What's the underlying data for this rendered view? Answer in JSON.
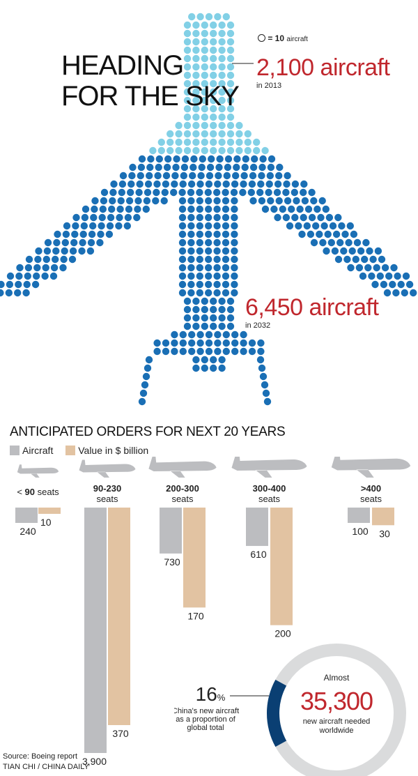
{
  "headline": [
    "HEADING",
    "FOR THE SKY"
  ],
  "legend_note": {
    "symbol": "circle",
    "value": "= 10",
    "unit": "aircraft"
  },
  "fleet_2013": {
    "value": "2,100 aircraft",
    "sub": "in 2013"
  },
  "fleet_2032": {
    "value": "6,450 aircraft",
    "sub": "in 2032"
  },
  "orders_title": "ANTICIPATED ORDERS FOR NEXT 20 YEARS",
  "orders_legend": {
    "aircraft": "Aircraft",
    "value": "Value in $ billion"
  },
  "colors": {
    "light_dot": "#82d0e6",
    "dark_dot": "#1a6fb5",
    "aircraft_bar": "#bcbdc0",
    "value_bar": "#e2c3a2",
    "plane_icon": "#bcbdc0",
    "donut_fill": "#0a3f73",
    "donut_rest": "#dadbdc",
    "accent_red": "#c0272d"
  },
  "chart_data": [
    {
      "type": "bar",
      "categories": [
        "< 90 seats",
        "90-230 seats",
        "200-300 seats",
        "300-400 seats",
        ">400 seats"
      ],
      "category_labels": [
        {
          "bold": "",
          "pre": "< ",
          "num": "90",
          "post": " seats",
          "line2": ""
        },
        {
          "bold": "90-230",
          "line2": "seats"
        },
        {
          "bold": "200-300",
          "line2": "seats"
        },
        {
          "bold": "300-400",
          "line2": "seats"
        },
        {
          "bold": ">400",
          "line2": "seats"
        }
      ],
      "series": [
        {
          "name": "Aircraft",
          "values": [
            240,
            3900,
            730,
            610,
            100
          ]
        },
        {
          "name": "Value in $ billion",
          "values": [
            10,
            370,
            170,
            200,
            30
          ]
        }
      ],
      "value_labels": {
        "aircraft": [
          "240",
          "3,900",
          "730",
          "610",
          "100"
        ],
        "value": [
          "10",
          "370",
          "170",
          "200",
          "30"
        ]
      }
    },
    {
      "type": "pie",
      "labels": [
        "China's new aircraft as a proportion of global total"
      ],
      "values": [
        16
      ],
      "share_label": {
        "number": "16",
        "unit": "%"
      },
      "share_caption": [
        "China's new aircraft",
        "as a proportion of",
        "global total"
      ],
      "center": {
        "top": "Almost",
        "value": "35,300",
        "caption": [
          "new aircraft needed",
          "worldwide"
        ]
      }
    }
  ],
  "source": [
    "Source: Boeing report",
    "TIAN CHI / CHINA DAILY"
  ]
}
